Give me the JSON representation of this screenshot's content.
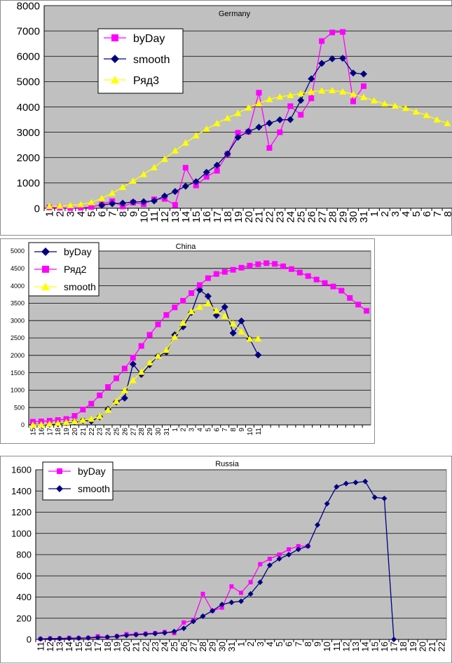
{
  "chart_data": [
    {
      "type": "line",
      "title": "Germany",
      "x": [
        "1",
        "2",
        "3",
        "4",
        "5",
        "6",
        "7",
        "8",
        "9",
        "10",
        "11",
        "12",
        "13",
        "14",
        "15",
        "16",
        "17",
        "18",
        "19",
        "20",
        "21",
        "22",
        "23",
        "24",
        "25",
        "26",
        "27",
        "28",
        "29",
        "30",
        "31",
        "1",
        "2",
        "3",
        "4",
        "5",
        "6",
        "7",
        "8"
      ],
      "ylim": [
        0,
        8000
      ],
      "yticks": [
        0,
        1000,
        2000,
        3000,
        4000,
        5000,
        6000,
        7000,
        8000
      ],
      "grid": true,
      "legend_position": "top-left",
      "series": [
        {
          "name": "byDay",
          "color": "#ff00ff",
          "marker": "square",
          "values": [
            30,
            20,
            10,
            20,
            50,
            150,
            280,
            70,
            220,
            160,
            350,
            370,
            130,
            1600,
            900,
            1240,
            1480,
            2140,
            2980,
            3020,
            4560,
            2380,
            3000,
            4030,
            3690,
            4340,
            6600,
            6940,
            6960,
            4220,
            4820,
            null,
            null,
            null,
            null,
            null,
            null,
            null,
            null
          ]
        },
        {
          "name": "smooth",
          "color": "#000080",
          "marker": "diamond",
          "values": [
            null,
            null,
            null,
            null,
            null,
            120,
            180,
            200,
            250,
            260,
            290,
            480,
            660,
            870,
            1050,
            1420,
            1700,
            2150,
            2800,
            3030,
            3200,
            3360,
            3490,
            3500,
            4260,
            5110,
            5720,
            5900,
            5920,
            5340,
            5300,
            null,
            null,
            null,
            null,
            null,
            null,
            null,
            null
          ]
        },
        {
          "name": "Ряд3",
          "color": "#ffff00",
          "marker": "triangle",
          "values": [
            80,
            90,
            110,
            150,
            230,
            390,
            600,
            830,
            1080,
            1340,
            1610,
            1940,
            2270,
            2580,
            2870,
            3130,
            3350,
            3560,
            3750,
            3970,
            4140,
            4300,
            4400,
            4460,
            4530,
            4600,
            4640,
            4650,
            4600,
            4500,
            4380,
            4250,
            4120,
            4040,
            3950,
            3810,
            3670,
            3500,
            3350
          ]
        }
      ]
    },
    {
      "type": "line",
      "title": "China",
      "x": [
        "15",
        "16",
        "17",
        "18",
        "19",
        "20",
        "21",
        "22",
        "23",
        "24",
        "25",
        "26",
        "27",
        "28",
        "29",
        "30",
        "31",
        "1",
        "2",
        "3",
        "4",
        "5",
        "6",
        "7",
        "8",
        "9",
        "10",
        "11",
        "",
        "",
        "",
        "",
        "",
        "",
        "",
        "",
        "",
        "",
        "",
        "",
        ""
      ],
      "ylim": [
        0,
        5000
      ],
      "yticks": [
        0,
        500,
        1000,
        1500,
        2000,
        2500,
        3000,
        3500,
        4000,
        4500,
        5000
      ],
      "grid": true,
      "legend_position": "top-left",
      "series": [
        {
          "name": "byDay",
          "color": "#000080",
          "marker": "diamond",
          "values": [
            10,
            10,
            20,
            30,
            70,
            90,
            130,
            110,
            230,
            450,
            660,
            770,
            1750,
            1450,
            1730,
            1980,
            2090,
            2590,
            2820,
            3230,
            3880,
            3700,
            3150,
            3390,
            2640,
            2990,
            2470,
            2010,
            null,
            null,
            null,
            null,
            null,
            null,
            null,
            null,
            null,
            null,
            null,
            null,
            null
          ]
        },
        {
          "name": "Ряд2",
          "color": "#ff00ff",
          "marker": "square",
          "values": [
            90,
            100,
            120,
            140,
            170,
            260,
            440,
            610,
            850,
            1090,
            1340,
            1620,
            1930,
            2270,
            2590,
            2890,
            3160,
            3380,
            3570,
            3790,
            4020,
            4220,
            4340,
            4400,
            4460,
            4520,
            4580,
            4620,
            4650,
            4630,
            4560,
            4480,
            4380,
            4280,
            4180,
            4080,
            3980,
            3860,
            3650,
            3460,
            3280
          ]
        },
        {
          "name": "smooth",
          "color": "#ffff00",
          "marker": "triangle",
          "values": [
            0,
            10,
            30,
            50,
            80,
            100,
            140,
            170,
            250,
            430,
            680,
            990,
            1280,
            1520,
            1790,
            1980,
            2150,
            2530,
            2930,
            3260,
            3390,
            3490,
            3280,
            3130,
            2910,
            2680,
            2470,
            2480,
            null,
            null,
            null,
            null,
            null,
            null,
            null,
            null,
            null,
            null,
            null,
            null,
            null
          ]
        }
      ]
    },
    {
      "type": "line",
      "title": "Russia",
      "x": [
        "11",
        "12",
        "13",
        "14",
        "15",
        "16",
        "17",
        "18",
        "19",
        "20",
        "21",
        "22",
        "23",
        "24",
        "25",
        "26",
        "27",
        "28",
        "29",
        "30",
        "31",
        "1",
        "2",
        "3",
        "4",
        "5",
        "6",
        "7",
        "8",
        "9",
        "10",
        "11",
        "12",
        "13",
        "14",
        "15",
        "16",
        "17",
        "18",
        "19",
        "20",
        "21",
        "22"
      ],
      "ylim": [
        0,
        1600
      ],
      "yticks": [
        0,
        200,
        400,
        600,
        800,
        1000,
        1200,
        1400,
        1600
      ],
      "grid": true,
      "legend_position": "top-left",
      "series": [
        {
          "name": "byDay",
          "color": "#ff00ff",
          "marker": "square",
          "values": [
            5,
            10,
            10,
            15,
            12,
            15,
            30,
            20,
            30,
            50,
            50,
            55,
            60,
            70,
            60,
            160,
            180,
            430,
            270,
            300,
            500,
            440,
            540,
            710,
            760,
            800,
            850,
            880,
            880,
            null,
            null,
            null,
            null,
            null,
            null,
            null,
            null,
            null,
            null,
            null,
            null,
            null,
            null
          ]
        },
        {
          "name": "smooth",
          "color": "#000080",
          "marker": "diamond",
          "values": [
            5,
            7,
            8,
            10,
            12,
            14,
            18,
            22,
            30,
            38,
            45,
            50,
            55,
            62,
            75,
            105,
            170,
            220,
            270,
            330,
            350,
            360,
            430,
            540,
            700,
            760,
            800,
            850,
            880,
            1080,
            1280,
            1440,
            1470,
            1480,
            1490,
            1340,
            1330,
            0,
            null,
            null,
            null,
            null,
            null
          ]
        }
      ]
    }
  ]
}
